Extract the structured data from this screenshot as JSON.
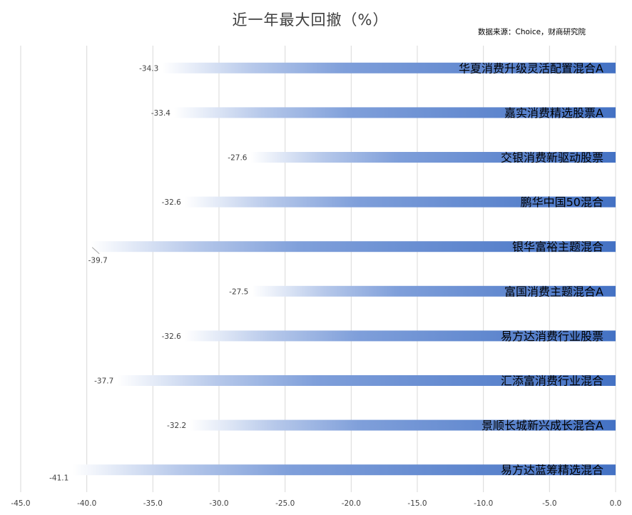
{
  "chart_data": {
    "type": "bar",
    "orientation": "horizontal",
    "title": "近一年最大回撤（%）",
    "source_note": "数据来源：Choice，财商研究院",
    "categories": [
      "华夏消费升级灵活配置混合A",
      "嘉实消费精选股票A",
      "交银消费新驱动股票",
      "鹏华中国50混合",
      "银华富裕主题混合",
      "富国消费主题混合A",
      "易方达消费行业股票",
      "汇添富消费行业混合",
      "景顺长城新兴成长混合A",
      "易方达蓝筹精选混合"
    ],
    "values": [
      -34.3,
      -33.4,
      -27.6,
      -32.6,
      -39.7,
      -27.5,
      -32.6,
      -37.7,
      -32.2,
      -41.1
    ],
    "value_labels": [
      "-34.3",
      "-33.4",
      "-27.6",
      "-32.6",
      "-39.7",
      "-27.5",
      "-32.6",
      "-37.7",
      "-32.2",
      "-41.1"
    ],
    "xlim": [
      -45,
      0
    ],
    "ticks": [
      -45,
      -40,
      -35,
      -30,
      -25,
      -20,
      -15,
      -10,
      -5,
      0
    ],
    "tick_labels": [
      "-45.0",
      "-40.0",
      "-35.0",
      "-30.0",
      "-25.0",
      "-20.0",
      "-15.0",
      "-10.0",
      "-5.0",
      "0.0"
    ],
    "grid": true,
    "legend": "none",
    "colors": {
      "bar": "#4472c4",
      "bar_fade": "#ffffff",
      "grid": "#d9d9d9",
      "text": "#404040"
    }
  }
}
